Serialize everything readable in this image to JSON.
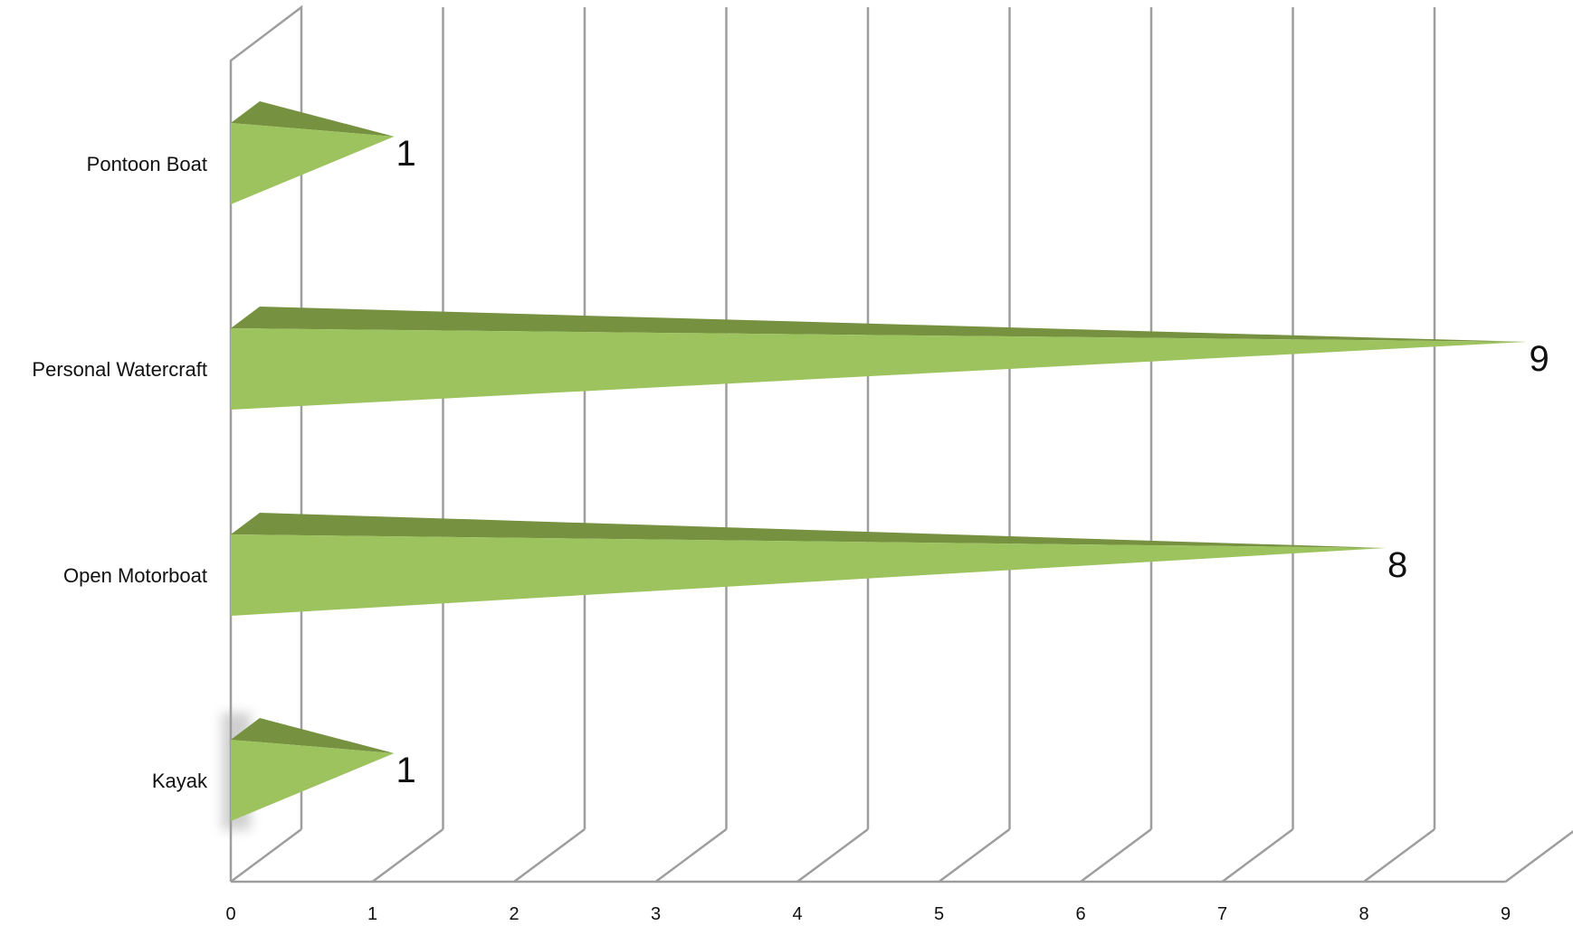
{
  "chart_data": {
    "type": "bar",
    "orientation": "horizontal",
    "style": "3d-cone",
    "categories": [
      "Pontoon Boat",
      "Personal Watercraft",
      "Open Motorboat",
      "Kayak"
    ],
    "values": [
      1,
      9,
      8,
      1
    ],
    "data_labels": [
      "1",
      "9",
      "8",
      "1"
    ],
    "x_ticks": [
      "0",
      "1",
      "2",
      "3",
      "4",
      "5",
      "6",
      "7",
      "8",
      "9"
    ],
    "xlim": [
      0,
      9
    ],
    "grid": true,
    "legend": "none",
    "title": "",
    "xlabel": "",
    "ylabel": "",
    "colors": {
      "cone_front": "#9dc35f",
      "cone_top": "#76913f",
      "grid": "#9e9e9e"
    }
  }
}
